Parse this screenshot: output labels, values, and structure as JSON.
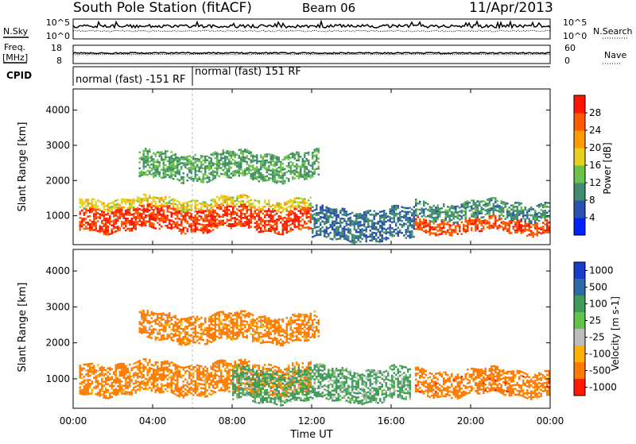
{
  "header": {
    "station": "South Pole Station (fitACF)",
    "beam": "Beam 06",
    "date": "11/Apr/2013"
  },
  "summary_panels": {
    "nsky_label": "N.Sky",
    "nsearch_label": "N.Search",
    "freq_label_1": "Freq.",
    "freq_label_2": "[MHz]",
    "nave_label": "Nave",
    "cpid_label": "CPID",
    "noise_left_ticks": [
      "10^5",
      "10^0"
    ],
    "noise_right_ticks": [
      "10^5",
      "10^0"
    ],
    "freq_left_ticks": [
      "18",
      "8"
    ],
    "nave_right_ticks": [
      "60",
      "0"
    ],
    "cpid_segments": [
      {
        "label": "normal (fast) -151 RF",
        "start_hour": 0,
        "end_hour": 6
      },
      {
        "label": "normal (fast) 151 RF",
        "start_hour": 6,
        "end_hour": 24
      }
    ]
  },
  "chart_data": [
    {
      "type": "heatmap",
      "name": "power",
      "ylabel": "Slant Range [km]",
      "x_ticks": [
        "00:00",
        "04:00",
        "08:00",
        "12:00",
        "16:00",
        "20:00",
        "00:00"
      ],
      "x_range_hours": [
        0,
        24
      ],
      "y_range_km": [
        180,
        4600
      ],
      "y_ticks": [
        1000,
        2000,
        3000,
        4000
      ],
      "colorbar": {
        "label": "Power [dB]",
        "ticks": [
          "28",
          "24",
          "20",
          "16",
          "12",
          "8",
          "4"
        ],
        "range": [
          0,
          32
        ],
        "colors": [
          "#0022ff",
          "#2a52b0",
          "#3f8c6e",
          "#6cc24a",
          "#e8d020",
          "#ff9a00",
          "#ff5a00",
          "#ff1500"
        ]
      },
      "echo_bands": [
        {
          "x": [
            0.3,
            12.0
          ],
          "y": [
            600,
            1250
          ],
          "value": 28
        },
        {
          "x": [
            0.3,
            12.0
          ],
          "y": [
            1250,
            1500
          ],
          "value": 18
        },
        {
          "x": [
            12.0,
            17.2
          ],
          "y": [
            350,
            1200
          ],
          "value": 8
        },
        {
          "x": [
            17.2,
            24.0
          ],
          "y": [
            550,
            900
          ],
          "value": 27
        },
        {
          "x": [
            17.2,
            24.0
          ],
          "y": [
            900,
            1400
          ],
          "value": 10
        },
        {
          "x": [
            3.3,
            12.3
          ],
          "y": [
            2050,
            2800
          ],
          "value": 12
        }
      ]
    },
    {
      "type": "heatmap",
      "name": "velocity",
      "xlabel": "Time UT",
      "ylabel": "Slant Range [km]",
      "x_ticks": [
        "00:00",
        "04:00",
        "08:00",
        "12:00",
        "16:00",
        "20:00",
        "00:00"
      ],
      "x_range_hours": [
        0,
        24
      ],
      "y_range_km": [
        180,
        4600
      ],
      "y_ticks": [
        1000,
        2000,
        3000,
        4000
      ],
      "colorbar": {
        "label": "Velocity [m s-1]",
        "ticks": [
          "1000",
          "500",
          "100",
          "25",
          "-25",
          "-100",
          "-500",
          "-1000"
        ],
        "colors": [
          "#1a3dc8",
          "#2e6aa8",
          "#3f9a5c",
          "#62c24a",
          "#bdbdbd",
          "#ffb000",
          "#ff7a00",
          "#ff1a00"
        ]
      },
      "echo_bands": [
        {
          "x": [
            0.3,
            12.0
          ],
          "y": [
            600,
            1450
          ],
          "value": -150
        },
        {
          "x": [
            8.0,
            17.0
          ],
          "y": [
            400,
            1300
          ],
          "value": 120
        },
        {
          "x": [
            17.2,
            24.0
          ],
          "y": [
            550,
            1250
          ],
          "value": -180
        },
        {
          "x": [
            3.3,
            12.3
          ],
          "y": [
            2050,
            2800
          ],
          "value": -150
        }
      ]
    }
  ]
}
